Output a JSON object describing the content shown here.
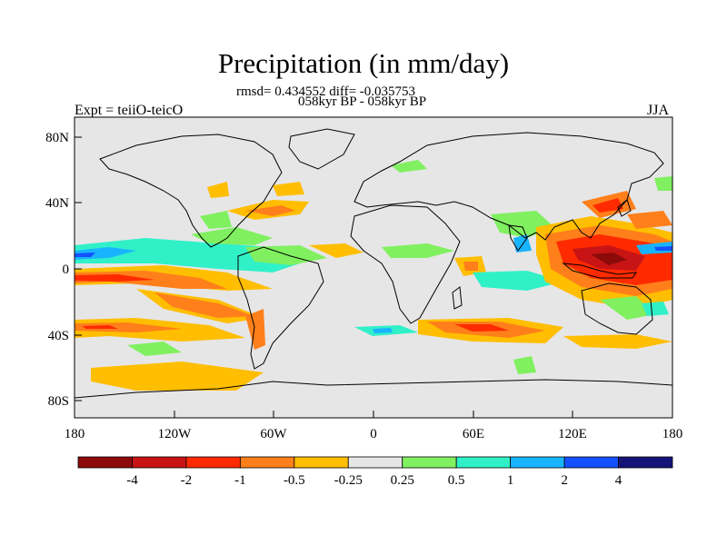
{
  "title": "Precipitation (in mm/day)",
  "stats_line": "rmsd= 0.434552 diff= -0.035753",
  "period_line": "058kyr BP - 058kyr BP",
  "experiment_label": "Expt = teiiO-teicO",
  "season_label": "JJA",
  "map": {
    "lat_ticks": [
      "80N",
      "40N",
      "0",
      "40S",
      "80S"
    ],
    "lon_ticks": [
      "180",
      "120W",
      "60W",
      "0",
      "60E",
      "120E",
      "180"
    ],
    "background_color": "#e6e6e6"
  },
  "colorbar": {
    "labels": [
      "-4",
      "-2",
      "-1",
      "-0.5",
      "-0.25",
      "0.25",
      "0.5",
      "1",
      "2",
      "4"
    ],
    "colors": [
      "#8c0a0a",
      "#c81414",
      "#ff2a00",
      "#ff7f1a",
      "#ffbe00",
      "#e6e6e6",
      "#80f060",
      "#30f0c8",
      "#19b4ff",
      "#1450ff",
      "#141478"
    ]
  }
}
